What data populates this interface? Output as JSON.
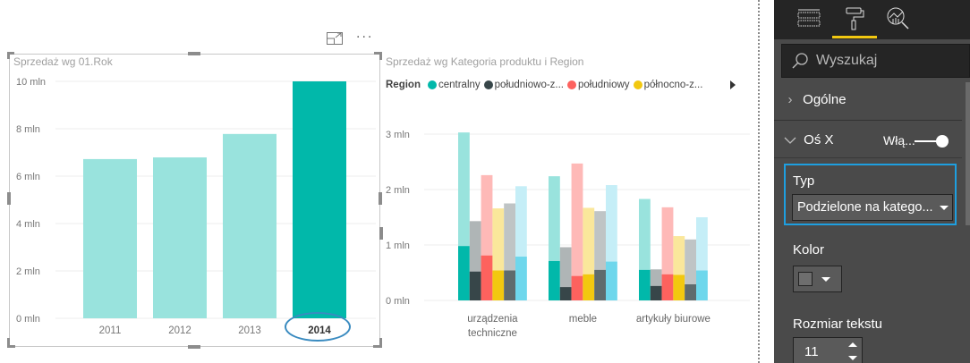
{
  "visual_header": {
    "focus_mode_icon": "focus-mode-icon",
    "more_options_icon": "more-options-icon",
    "more_options_label": "···"
  },
  "left_chart": {
    "title": "Sprzedaż wg 01.Rok"
  },
  "right_chart": {
    "title": "Sprzedaż wg Kategoria produktu i Region",
    "legend_title": "Region",
    "legend_items": [
      {
        "label": "centralny",
        "color": "#01B8AA"
      },
      {
        "label": "południowo-z...",
        "color": "#374649"
      },
      {
        "label": "południowy",
        "color": "#FD625E"
      },
      {
        "label": "północno-z...",
        "color": "#F2C80F"
      }
    ],
    "legend_next_icon": "legend-next-arrow-icon"
  },
  "chart_data": [
    {
      "type": "bar",
      "title": "Sprzedaż wg 01.Rok",
      "xlabel": "",
      "ylabel": "",
      "categories": [
        "2011",
        "2012",
        "2013",
        "2014"
      ],
      "values": [
        6.72,
        6.79,
        7.78,
        10.0
      ],
      "unit": "mln",
      "yticks": [
        "0 mln",
        "2 mln",
        "4 mln",
        "6 mln",
        "8 mln",
        "10 mln"
      ],
      "ytick_values": [
        0,
        2,
        4,
        6,
        8,
        10
      ],
      "ylim": [
        0,
        10
      ],
      "selected_category": "2014",
      "color": "#01B8AA",
      "dimmed_color": "#99E3DD",
      "grid": true
    },
    {
      "type": "bar",
      "title": "Sprzedaż wg Kategoria produktu i Region",
      "xlabel": "",
      "ylabel": "",
      "categories": [
        [
          "urządzenia",
          "techniczne"
        ],
        [
          "meble"
        ],
        [
          "artykuły biurowe"
        ]
      ],
      "unit": "mln",
      "yticks": [
        "0 mln",
        "1 mln",
        "2 mln",
        "3 mln"
      ],
      "ytick_values": [
        0,
        1,
        2,
        3
      ],
      "ylim": [
        0,
        3.2
      ],
      "legend": "top-left",
      "grid": true,
      "series": [
        {
          "name": "centralny",
          "color": "#01B8AA",
          "dimmed_color": "#99E3DD",
          "values": [
            3.03,
            2.24,
            1.83
          ],
          "highlighted": [
            0.98,
            0.71,
            0.55
          ]
        },
        {
          "name": "południowo-z...",
          "color": "#374649",
          "dimmed_color": "#AFB5B6",
          "values": [
            1.43,
            0.96,
            0.56
          ],
          "highlighted": [
            0.52,
            0.24,
            0.26
          ]
        },
        {
          "name": "południowy",
          "color": "#FD625E",
          "dimmed_color": "#FEB9B7",
          "values": [
            2.26,
            2.47,
            1.68
          ],
          "highlighted": [
            0.81,
            0.44,
            0.47
          ]
        },
        {
          "name": "północno-z...",
          "color": "#F2C80F",
          "dimmed_color": "#FAE79B",
          "values": [
            1.66,
            1.67,
            1.16
          ],
          "highlighted": [
            0.54,
            0.47,
            0.46
          ]
        },
        {
          "name": "",
          "color": "#5F6B6D",
          "dimmed_color": "#BFC4C5",
          "values": [
            1.75,
            1.61,
            1.1
          ],
          "highlighted": [
            0.54,
            0.55,
            0.29
          ]
        },
        {
          "name": "",
          "color": "#6ED7EC",
          "dimmed_color": "#C5EEF7",
          "values": [
            2.06,
            2.08,
            1.5
          ],
          "highlighted": [
            0.79,
            0.7,
            0.54
          ]
        }
      ]
    }
  ],
  "format_pane": {
    "tabs": [
      {
        "name": "fields",
        "icon": "fields-icon",
        "active": false
      },
      {
        "name": "format",
        "icon": "paint-roller-icon",
        "active": true
      },
      {
        "name": "analytics",
        "icon": "analytics-icon",
        "active": false
      }
    ],
    "active_tab_color": "#F2C811",
    "search_placeholder": "Wyszukaj",
    "sections": {
      "general": {
        "label": "Ogólne",
        "expanded": false
      },
      "x_axis": {
        "label": "Oś X",
        "expanded": true,
        "toggle_label": "Włą...",
        "toggle_on": true
      }
    },
    "type_label": "Typ",
    "type_value": "Podzielone na katego...",
    "color_label": "Kolor",
    "text_size_label": "Rozmiar tekstu",
    "text_size_value": "11",
    "highlight_color": "#1E9FE0"
  }
}
